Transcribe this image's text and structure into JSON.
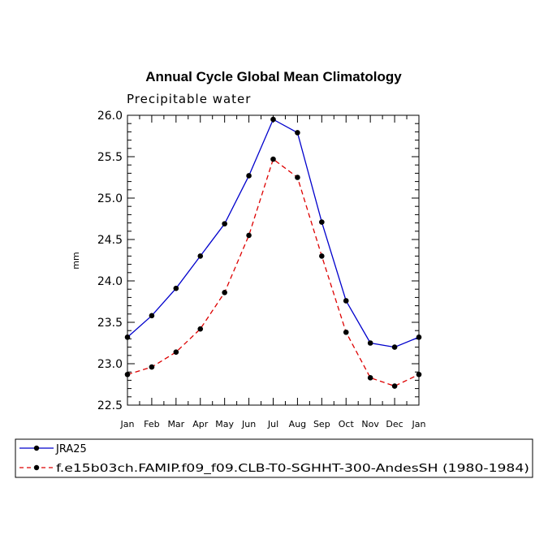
{
  "chart_data": {
    "type": "line",
    "title": "Annual Cycle Global Mean Climatology",
    "subtitle": "Precipitable water",
    "xlabel": "",
    "ylabel": "mm",
    "categories": [
      "Jan",
      "Feb",
      "Mar",
      "Apr",
      "May",
      "Jun",
      "Jul",
      "Aug",
      "Sep",
      "Oct",
      "Nov",
      "Dec",
      "Jan"
    ],
    "ylim": [
      22.5,
      26.0
    ],
    "yticks": [
      "22.5",
      "23.0",
      "23.5",
      "24.0",
      "24.5",
      "25.0",
      "25.5",
      "26.0"
    ],
    "legend_position": "bottom",
    "series": [
      {
        "name": "JRA25",
        "color": "#0000cc",
        "line_style": "solid",
        "values": [
          23.32,
          23.58,
          23.91,
          24.3,
          24.69,
          25.27,
          25.95,
          25.79,
          24.71,
          23.76,
          23.25,
          23.2,
          23.32
        ]
      },
      {
        "name": "f.e15b03ch.FAMIP.f09_f09.CLB-T0-SGHHT-300-AndesSH (1980-1984)",
        "color": "#dd0000",
        "line_style": "dashed",
        "values": [
          22.87,
          22.96,
          23.14,
          23.42,
          23.86,
          24.55,
          25.47,
          25.25,
          24.3,
          23.38,
          22.83,
          22.73,
          22.87
        ]
      }
    ]
  }
}
